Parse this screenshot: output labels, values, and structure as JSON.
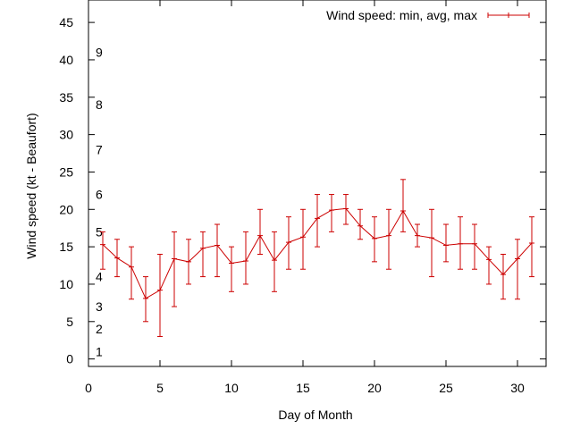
{
  "chart_data": {
    "type": "line",
    "xlabel": "Day of Month",
    "ylabel": "Wind speed (kt - Beaufort)",
    "xlim": [
      0,
      32
    ],
    "ylim": [
      -1,
      48
    ],
    "x_ticks": [
      0,
      5,
      10,
      15,
      20,
      25,
      30
    ],
    "y_ticks": [
      0,
      5,
      10,
      15,
      20,
      25,
      30,
      35,
      40,
      45
    ],
    "grid": false,
    "legend": "top-right",
    "beaufort_scale": [
      {
        "label": "1",
        "value": 1
      },
      {
        "label": "2",
        "value": 4
      },
      {
        "label": "3",
        "value": 7
      },
      {
        "label": "4",
        "value": 11
      },
      {
        "label": "5",
        "value": 17
      },
      {
        "label": "6",
        "value": 22
      },
      {
        "label": "7",
        "value": 28
      },
      {
        "label": "8",
        "value": 34
      },
      {
        "label": "9",
        "value": 41
      }
    ],
    "series": [
      {
        "name": "Wind speed: min, avg, max",
        "color": "#cc0000",
        "x": [
          1,
          2,
          3,
          4,
          5,
          6,
          7,
          8,
          9,
          10,
          11,
          12,
          13,
          14,
          15,
          16,
          17,
          18,
          19,
          20,
          21,
          22,
          23,
          24,
          25,
          26,
          27,
          28,
          29,
          30,
          31
        ],
        "avg": [
          15.3,
          13.5,
          12.3,
          8.1,
          9.2,
          13.4,
          13.0,
          14.8,
          15.2,
          12.8,
          13.1,
          16.5,
          13.2,
          15.6,
          16.3,
          18.8,
          19.9,
          20.1,
          17.8,
          16.1,
          16.5,
          19.8,
          16.5,
          16.2,
          15.2,
          15.4,
          15.4,
          13.3,
          11.3,
          13.4,
          15.5
        ],
        "min": [
          12,
          11,
          8,
          5,
          3,
          7,
          10,
          11,
          11,
          9,
          10,
          14,
          9,
          12,
          12,
          15,
          17,
          18,
          16,
          13,
          12,
          17,
          15,
          11,
          13,
          12,
          12,
          10,
          8,
          8,
          11
        ],
        "max": [
          17,
          16,
          15,
          11,
          14,
          17,
          16,
          17,
          18,
          15,
          17,
          20,
          17,
          19,
          20,
          22,
          22,
          22,
          20,
          19,
          20,
          24,
          18,
          20,
          18,
          19,
          18,
          15,
          14,
          16,
          19
        ]
      }
    ]
  }
}
